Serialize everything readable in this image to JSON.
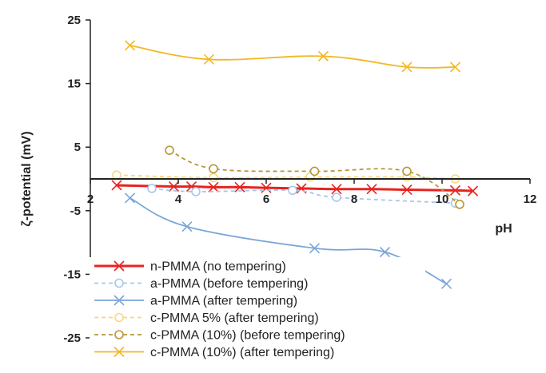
{
  "chart_data": {
    "type": "line",
    "xlabel": "pH",
    "ylabel": "ζ-potential (mV)",
    "xlim": [
      2,
      12
    ],
    "ylim": [
      -25,
      25
    ],
    "x_ticks": [
      2,
      4,
      6,
      8,
      10,
      12
    ],
    "y_ticks": [
      25,
      15,
      5,
      -5,
      -15,
      -25
    ],
    "grid": false,
    "legend_position": "bottom-left",
    "series": [
      {
        "name": "n-PMMA (no tempering)",
        "color": "#e8231f",
        "dash": "solid",
        "marker": "x",
        "x": [
          2.6,
          3.9,
          4.3,
          4.8,
          5.4,
          6.0,
          6.8,
          7.6,
          8.4,
          9.2,
          10.3,
          10.7
        ],
        "y": [
          -1.0,
          -1.2,
          -1.2,
          -1.3,
          -1.3,
          -1.4,
          -1.5,
          -1.6,
          -1.6,
          -1.7,
          -1.8,
          -1.9
        ]
      },
      {
        "name": "a-PMMA (before tempering)",
        "color": "#a9c6e8",
        "dash": "dashed",
        "marker": "circle",
        "x": [
          3.4,
          4.4,
          6.6,
          7.6,
          10.3
        ],
        "y": [
          -1.5,
          -2.0,
          -1.8,
          -2.9,
          -3.8
        ]
      },
      {
        "name": "a-PMMA (after tempering)",
        "color": "#7aa6d8",
        "dash": "solid",
        "marker": "x",
        "x": [
          2.9,
          4.2,
          7.1,
          8.7,
          10.1
        ],
        "y": [
          -3.0,
          -7.5,
          -10.9,
          -11.5,
          -16.5
        ]
      },
      {
        "name": "c-PMMA 5% (after tempering)",
        "color": "#f7d97a",
        "dash": "dashed",
        "marker": "circle",
        "x": [
          2.6,
          4.8,
          7.0,
          9.2,
          10.3
        ],
        "y": [
          0.6,
          0.2,
          0.3,
          0.3,
          0.0
        ]
      },
      {
        "name": "c-PMMA (10%) (before tempering)",
        "color": "#b8963a",
        "dash": "dashed",
        "marker": "circle",
        "x": [
          3.8,
          4.8,
          7.1,
          9.2,
          10.4
        ],
        "y": [
          4.5,
          1.6,
          1.2,
          1.2,
          -4.0
        ]
      },
      {
        "name": "c-PMMA (10%) (after tempering)",
        "color": "#f2b824",
        "dash": "solid",
        "marker": "x",
        "x": [
          2.9,
          4.7,
          7.3,
          9.2,
          10.3
        ],
        "y": [
          21.0,
          18.8,
          19.3,
          17.6,
          17.6
        ]
      }
    ]
  }
}
